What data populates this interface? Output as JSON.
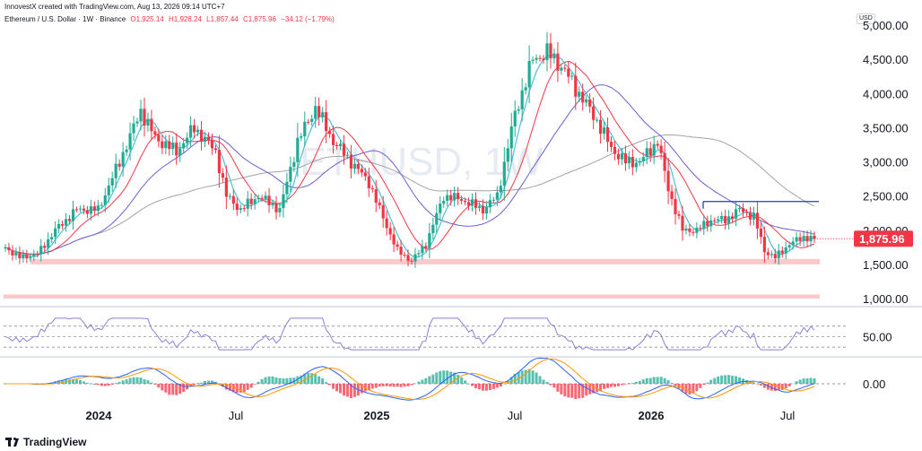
{
  "header": {
    "attribution": "InnovestX created with TradingView.com, Aug 13, 2026 09:14 UTC+7"
  },
  "legend": {
    "symbol": "Ethereum / U.S. Dollar · 1W · Binance",
    "open": "O1,925.14",
    "high": "H1,928.24",
    "low": "L1,857.44",
    "close": "C1,875.96",
    "change": "−34.12 (−1.79%)"
  },
  "watermark": "ETHUSD, 1W",
  "currency_badge": "USD",
  "price_badge": {
    "text": "1,875.96",
    "color": "#f23645"
  },
  "footer": {
    "brand": "TradingView"
  },
  "colors": {
    "up": "#22ab94",
    "down": "#f23645",
    "ma_fast": "#4dc0d8",
    "ma_mid": "#f23645",
    "ma_slow": "#6b5fd3",
    "ma_long": "#a3a3a3",
    "support_zone": "#f9c9cc",
    "resistance_line": "#1f3eb5",
    "rsi": "#8a80d8",
    "macd": "#2962ff",
    "signal": "#ff9800"
  },
  "chart_data": [
    {
      "type": "candlestick",
      "y_axis_ticks": [
        "1,000.00",
        "1,500.00",
        "2,000.00",
        "2,500.00",
        "3,000.00",
        "3,500.00",
        "4,000.00",
        "4,500.00",
        "5,000.00"
      ],
      "x_axis_ticks": [
        "2024",
        "Jul",
        "2025",
        "Jul",
        "2026",
        "Jul"
      ],
      "ylim": [
        1000,
        5000
      ],
      "anchors": [
        [
          0,
          1750
        ],
        [
          4,
          1600
        ],
        [
          9,
          1650
        ],
        [
          14,
          2000
        ],
        [
          20,
          2300
        ],
        [
          26,
          2300
        ],
        [
          32,
          3000
        ],
        [
          38,
          3750
        ],
        [
          42,
          3350
        ],
        [
          48,
          3150
        ],
        [
          53,
          3500
        ],
        [
          59,
          3150
        ],
        [
          62,
          2500
        ],
        [
          66,
          2300
        ],
        [
          71,
          2500
        ],
        [
          77,
          2300
        ],
        [
          82,
          3300
        ],
        [
          87,
          3800
        ],
        [
          92,
          3300
        ],
        [
          97,
          3000
        ],
        [
          102,
          2700
        ],
        [
          105,
          2300
        ],
        [
          110,
          1700
        ],
        [
          114,
          1550
        ],
        [
          118,
          1800
        ],
        [
          123,
          2500
        ],
        [
          128,
          2450
        ],
        [
          134,
          2300
        ],
        [
          138,
          2500
        ],
        [
          143,
          3700
        ],
        [
          148,
          4500
        ],
        [
          152,
          4600
        ],
        [
          156,
          4400
        ],
        [
          161,
          4000
        ],
        [
          166,
          3600
        ],
        [
          170,
          3200
        ],
        [
          174,
          3000
        ],
        [
          178,
          3000
        ],
        [
          183,
          3300
        ],
        [
          186,
          2600
        ],
        [
          190,
          2000
        ],
        [
          194,
          2000
        ],
        [
          198,
          2150
        ],
        [
          202,
          2150
        ],
        [
          206,
          2300
        ],
        [
          210,
          2200
        ],
        [
          213,
          1700
        ],
        [
          216,
          1600
        ],
        [
          220,
          1800
        ],
        [
          224,
          1900
        ],
        [
          227,
          1875.96
        ]
      ],
      "support_zone": [
        1500,
        1580
      ],
      "lower_zone": [
        1000,
        1060
      ],
      "resistance_line": 2420,
      "last_price": 1875.96
    },
    {
      "type": "line",
      "name": "RSI",
      "y_axis_ticks": [
        "50.00"
      ],
      "levels": [
        70,
        50,
        30
      ]
    },
    {
      "type": "bar",
      "name": "MACD",
      "y_axis_ticks": [
        "0.00"
      ]
    }
  ]
}
